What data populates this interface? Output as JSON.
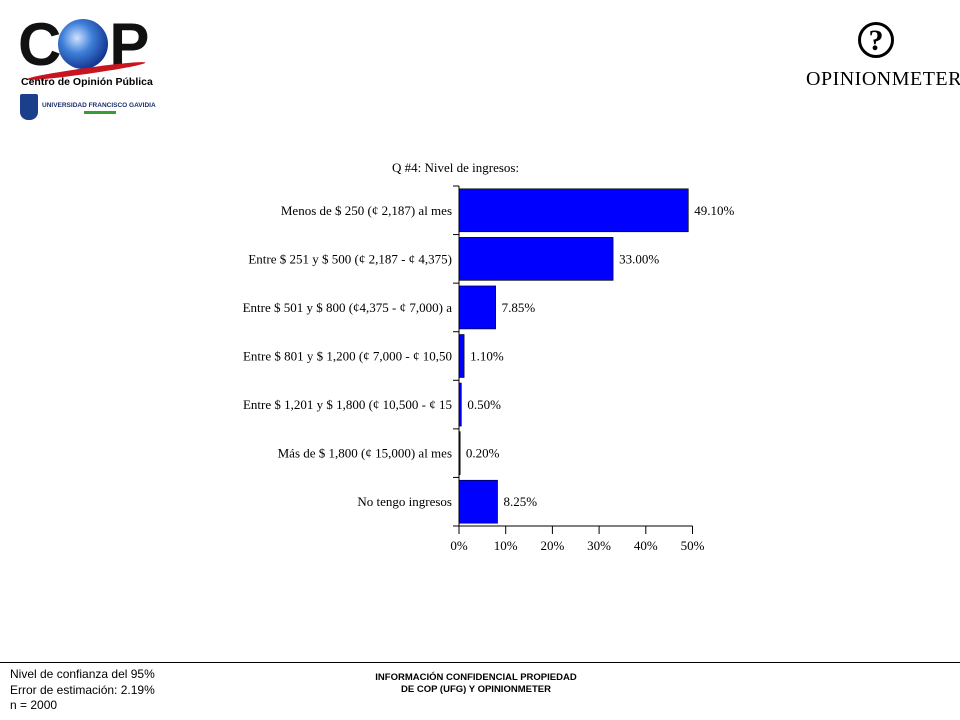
{
  "logos": {
    "cop": {
      "word_c": "C",
      "word_p": "P",
      "subtitle": "Centro de Opinión Pública",
      "university": "UNIVERSIDAD FRANCISCO GAVIDIA"
    },
    "opinionmeter": {
      "symbol": "?",
      "wordmark": "OPINIONMETER"
    }
  },
  "chart_data": {
    "type": "bar",
    "orientation": "horizontal",
    "title": "Q #4: Nivel de ingresos:",
    "categories": [
      "Menos de $ 250 (¢ 2,187) al mes",
      "Entre $ 251 y $ 500 (¢ 2,187 - ¢ 4,375)",
      "Entre $ 501 y $ 800 (¢4,375 - ¢ 7,000) a",
      "Entre $ 801 y $ 1,200 (¢ 7,000 - ¢ 10,50",
      "Entre $ 1,201 y $ 1,800 (¢ 10,500 - ¢ 15",
      "Más de $ 1,800 (¢ 15,000) al mes",
      "No tengo ingresos"
    ],
    "values": [
      49.1,
      33.0,
      7.85,
      1.1,
      0.5,
      0.2,
      8.25
    ],
    "value_labels": [
      "49.10%",
      "33.00%",
      "7.85%",
      "1.10%",
      "0.50%",
      "0.20%",
      "8.25%"
    ],
    "xlim": [
      0,
      50
    ],
    "xticks": [
      "0%",
      "10%",
      "20%",
      "30%",
      "40%",
      "50%"
    ],
    "bar_color": "#0000ff",
    "grid": false
  },
  "footer": {
    "confidence": "Nivel de confianza del 95%",
    "error": "Error de estimación: 2.19%",
    "sample": "n = 2000",
    "confidential_line1": "INFORMACIÓN CONFIDENCIAL PROPIEDAD",
    "confidential_line2": "DE COP (UFG) Y OPINIONMETER"
  }
}
